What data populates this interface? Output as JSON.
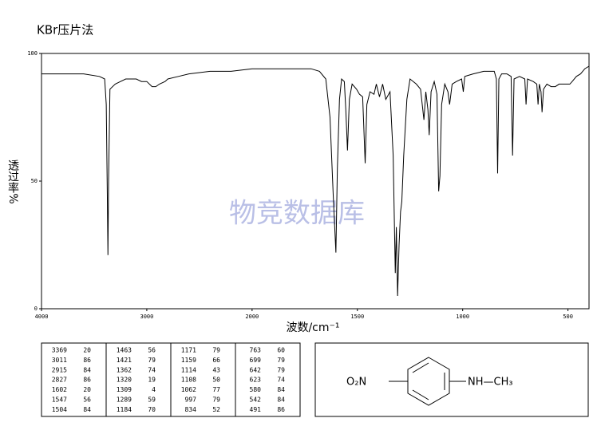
{
  "chart_data": {
    "type": "line",
    "title": "KBr压片法",
    "x_label": "波数/cm⁻¹",
    "y_label": "透过率%",
    "watermark": "物竞数据库",
    "xlim": [
      4000,
      400
    ],
    "xscale_break": 2000,
    "xticks": [
      4000,
      3000,
      2000,
      1500,
      1000,
      500
    ],
    "ylim": [
      0,
      100
    ],
    "yticks": [
      0,
      50,
      100
    ],
    "color": "#000000",
    "x": [
      4000,
      3600,
      3450,
      3400,
      3385,
      3375,
      3369,
      3363,
      3350,
      3300,
      3250,
      3200,
      3100,
      3050,
      3011,
      3000,
      2950,
      2915,
      2880,
      2827,
      2800,
      2700,
      2600,
      2400,
      2200,
      2000,
      1800,
      1720,
      1680,
      1650,
      1630,
      1615,
      1602,
      1595,
      1585,
      1575,
      1562,
      1555,
      1547,
      1538,
      1525,
      1504,
      1490,
      1475,
      1463,
      1455,
      1440,
      1421,
      1410,
      1395,
      1380,
      1365,
      1345,
      1330,
      1320,
      1315,
      1309,
      1302,
      1295,
      1289,
      1280,
      1265,
      1250,
      1220,
      1200,
      1184,
      1175,
      1165,
      1159,
      1150,
      1135,
      1122,
      1114,
      1108,
      1100,
      1085,
      1070,
      1062,
      1050,
      1030,
      1005,
      997,
      990,
      950,
      900,
      850,
      840,
      834,
      828,
      815,
      790,
      770,
      763,
      756,
      730,
      705,
      699,
      692,
      665,
      648,
      642,
      636,
      628,
      623,
      616,
      600,
      580,
      560,
      542,
      520,
      500,
      491,
      480,
      460,
      440,
      420,
      400
    ],
    "values": [
      92,
      92,
      91,
      90,
      80,
      45,
      21,
      50,
      86,
      88,
      89,
      90,
      90,
      89,
      89,
      89,
      87,
      87,
      88,
      89,
      90,
      91,
      92,
      93,
      93,
      94,
      94,
      94,
      93,
      90,
      75,
      45,
      22,
      55,
      82,
      90,
      89,
      78,
      62,
      82,
      88,
      86,
      84,
      83,
      57,
      80,
      85,
      84,
      88,
      83,
      88,
      82,
      85,
      60,
      14,
      32,
      5,
      25,
      38,
      42,
      60,
      82,
      90,
      88,
      86,
      74,
      85,
      78,
      68,
      85,
      89,
      84,
      46,
      52,
      80,
      88,
      85,
      80,
      88,
      89,
      90,
      85,
      91,
      92,
      93,
      93,
      90,
      53,
      90,
      92,
      92,
      91,
      60,
      90,
      91,
      90,
      80,
      90,
      89,
      88,
      80,
      88,
      85,
      77,
      86,
      88,
      87,
      87,
      88,
      88,
      88,
      88,
      89,
      91,
      92,
      94,
      95
    ]
  },
  "peak_table": [
    [
      3369,
      20
    ],
    [
      3011,
      86
    ],
    [
      2915,
      84
    ],
    [
      2827,
      86
    ],
    [
      1602,
      20
    ],
    [
      1547,
      56
    ],
    [
      1504,
      84
    ],
    [
      1463,
      56
    ],
    [
      1421,
      79
    ],
    [
      1362,
      74
    ],
    [
      1320,
      19
    ],
    [
      1309,
      4
    ],
    [
      1289,
      59
    ],
    [
      1184,
      70
    ],
    [
      1171,
      79
    ],
    [
      1159,
      66
    ],
    [
      1114,
      43
    ],
    [
      1108,
      50
    ],
    [
      1062,
      77
    ],
    [
      997,
      79
    ],
    [
      834,
      52
    ],
    [
      763,
      60
    ],
    [
      699,
      79
    ],
    [
      642,
      79
    ],
    [
      623,
      74
    ],
    [
      580,
      84
    ],
    [
      542,
      84
    ],
    [
      491,
      86
    ]
  ],
  "structure": {
    "left_group": "O₂N",
    "right_group": "NH—CH₃"
  }
}
